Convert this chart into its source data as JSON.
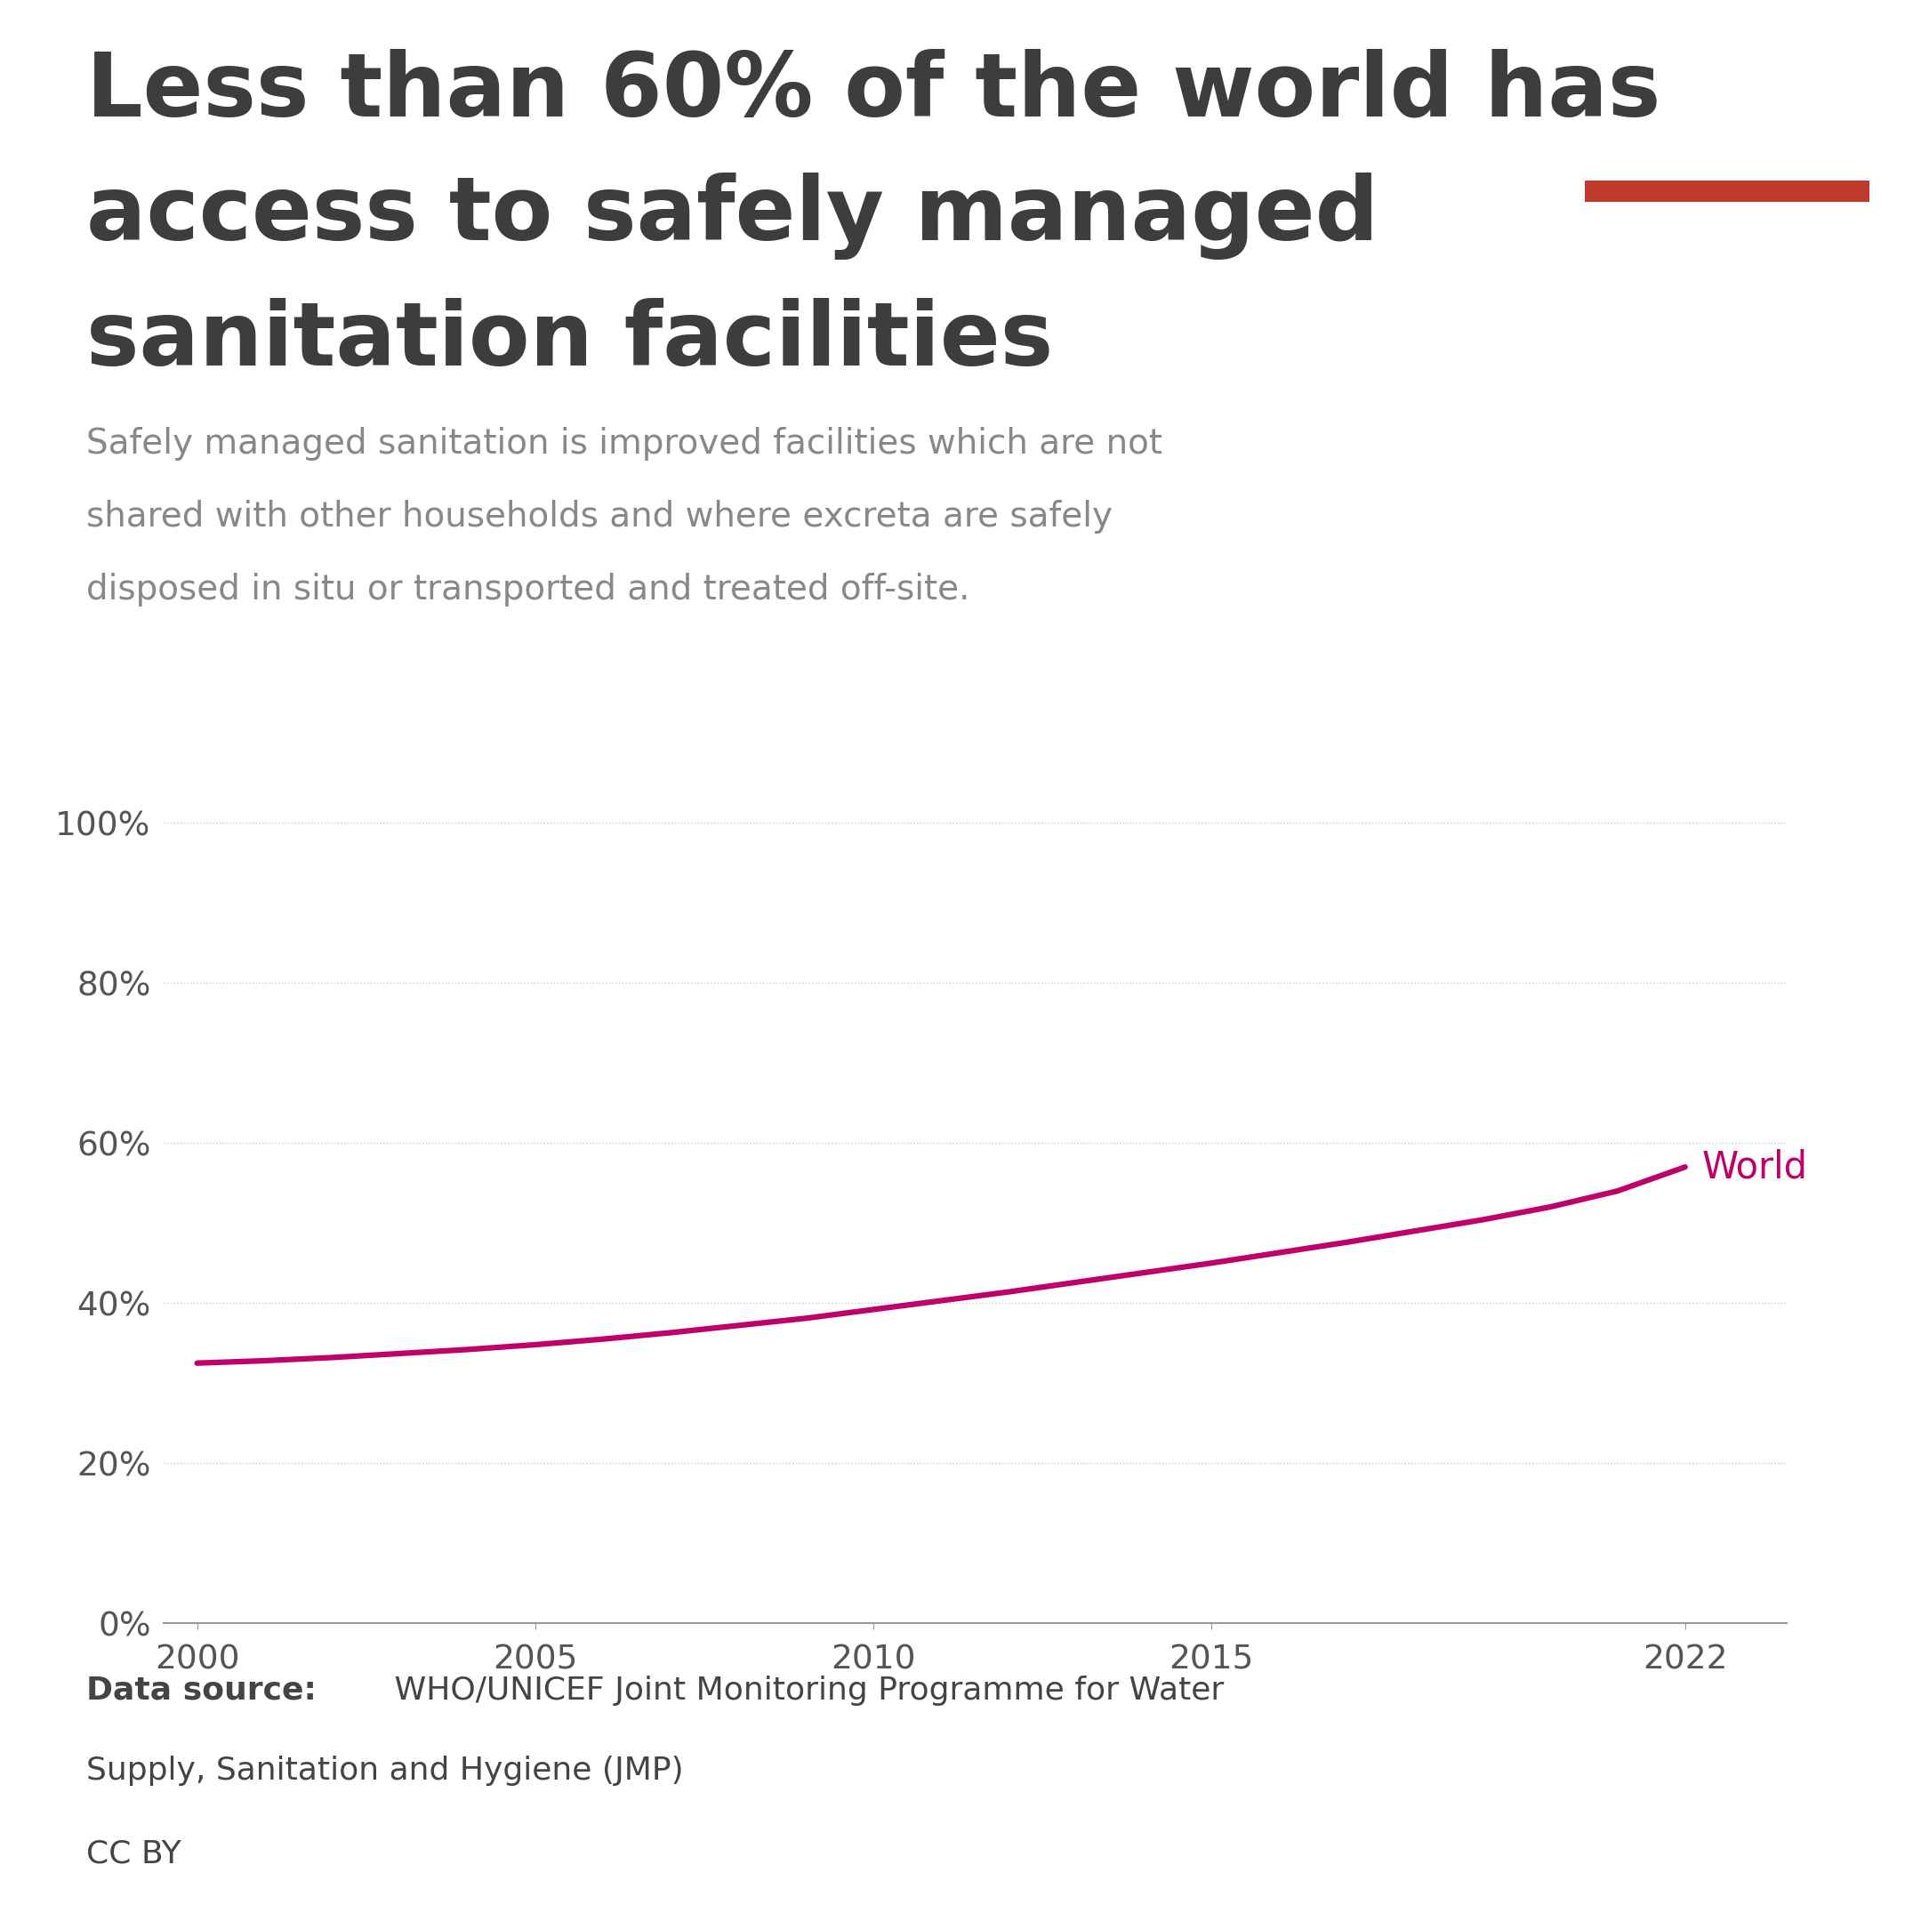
{
  "title_line1": "Less than 60% of the world has",
  "title_line2": "access to safely managed",
  "title_line3": "sanitation facilities",
  "subtitle_lines": [
    "Safely managed sanitation is improved facilities which are not",
    "shared with other households and where excreta are safely",
    "disposed in situ or transported and treated off-site."
  ],
  "years": [
    2000,
    2001,
    2002,
    2003,
    2004,
    2005,
    2006,
    2007,
    2008,
    2009,
    2010,
    2011,
    2012,
    2013,
    2014,
    2015,
    2016,
    2017,
    2018,
    2019,
    2020,
    2021,
    2022
  ],
  "values": [
    32.5,
    32.8,
    33.2,
    33.7,
    34.2,
    34.8,
    35.5,
    36.3,
    37.2,
    38.1,
    39.2,
    40.3,
    41.4,
    42.6,
    43.8,
    45.0,
    46.3,
    47.6,
    49.0,
    50.4,
    52.0,
    54.0,
    57.0
  ],
  "line_color": "#C0006A",
  "line_width": 4.5,
  "yticks": [
    0,
    20,
    40,
    60,
    80,
    100
  ],
  "xticks": [
    2000,
    2005,
    2010,
    2015,
    2022
  ],
  "ylim": [
    0,
    108
  ],
  "xlim": [
    1999.5,
    2023.5
  ],
  "title_color": "#3d3d3d",
  "subtitle_color": "#888888",
  "grid_color": "#cccccc",
  "axis_color": "#999999",
  "tick_color": "#555555",
  "datasource_bold": "Data source:",
  "datasource_rest": " WHO/UNICEF Joint Monitoring Programme for Water",
  "datasource_line2": "Supply, Sanitation and Hygiene (JMP)",
  "license_text": "CC BY",
  "owid_bg_color": "#1a2e4a",
  "owid_red_color": "#c0392b",
  "background_color": "#ffffff"
}
